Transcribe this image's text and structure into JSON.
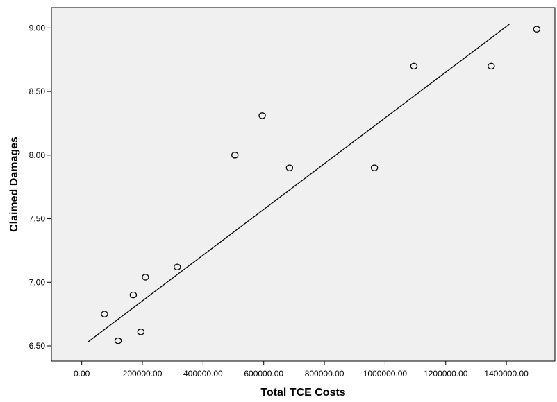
{
  "chart_data": {
    "type": "scatter",
    "title": "",
    "xlabel": "Total TCE Costs",
    "ylabel": "Claimed Damages",
    "xlim": [
      -100000,
      1560000
    ],
    "ylim": [
      6.38,
      9.16
    ],
    "x_ticks": [
      0,
      200000,
      400000,
      600000,
      800000,
      1000000,
      1200000,
      1400000
    ],
    "x_tick_labels": [
      "0.00",
      "200000.00",
      "400000.00",
      "600000.00",
      "800000.00",
      "1000000.00",
      "1200000.00",
      "1400000.00"
    ],
    "y_ticks": [
      6.5,
      7.0,
      7.5,
      8.0,
      8.5,
      9.0
    ],
    "y_tick_labels": [
      "6.50",
      "7.00",
      "7.50",
      "8.00",
      "8.50",
      "9.00"
    ],
    "points": [
      {
        "x": 75000,
        "y": 6.75
      },
      {
        "x": 120000,
        "y": 6.54
      },
      {
        "x": 170000,
        "y": 6.9
      },
      {
        "x": 195000,
        "y": 6.61
      },
      {
        "x": 210000,
        "y": 7.04
      },
      {
        "x": 315000,
        "y": 7.12
      },
      {
        "x": 505000,
        "y": 8.0
      },
      {
        "x": 595000,
        "y": 8.31
      },
      {
        "x": 685000,
        "y": 7.9
      },
      {
        "x": 965000,
        "y": 7.9
      },
      {
        "x": 1095000,
        "y": 8.7
      },
      {
        "x": 1350000,
        "y": 8.7
      },
      {
        "x": 1500000,
        "y": 8.99
      }
    ],
    "fit_line": {
      "x": [
        20000,
        1410000
      ],
      "y": [
        6.53,
        9.03
      ]
    },
    "grid": false,
    "plot_background": "#f0f0f0",
    "marker_color": "#000000",
    "line_color": "#000000"
  }
}
